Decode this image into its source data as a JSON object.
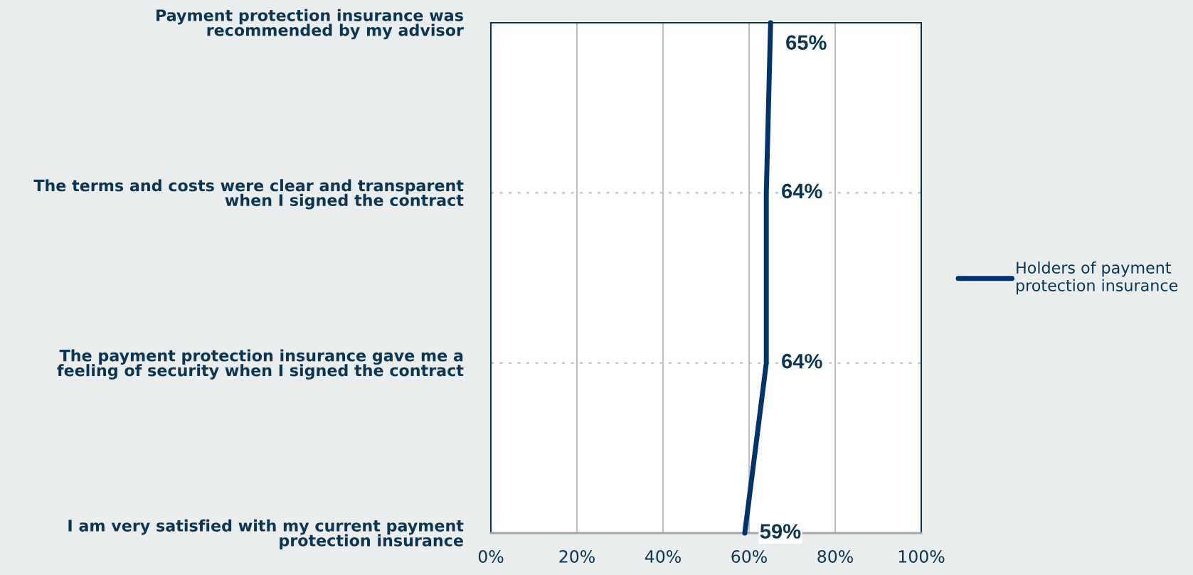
{
  "chart_data": {
    "type": "line",
    "orientation": "horizontal",
    "categories": [
      "Payment protection insurance was\nrecommended by my advisor",
      "The terms and costs were clear and transparent\nwhen I signed the contract",
      "The payment protection insurance gave me a\nfeeling of security when I signed the contract",
      "I am very satisfied with my current payment\nprotection insurance"
    ],
    "series": [
      {
        "name": "Holders of payment\nprotection insurance",
        "color": "#00336a",
        "values": [
          65,
          64,
          64,
          59
        ],
        "value_labels": [
          "65%",
          "64%",
          "64%",
          "59%"
        ]
      }
    ],
    "xlim": [
      0,
      100
    ],
    "xticks": [
      {
        "value": 0,
        "label": "0%"
      },
      {
        "value": 20,
        "label": "20%"
      },
      {
        "value": 40,
        "label": "40%"
      },
      {
        "value": 60,
        "label": "60%"
      },
      {
        "value": 80,
        "label": "80%"
      },
      {
        "value": 100,
        "label": "100%"
      }
    ],
    "grid": true,
    "legend": "right"
  }
}
